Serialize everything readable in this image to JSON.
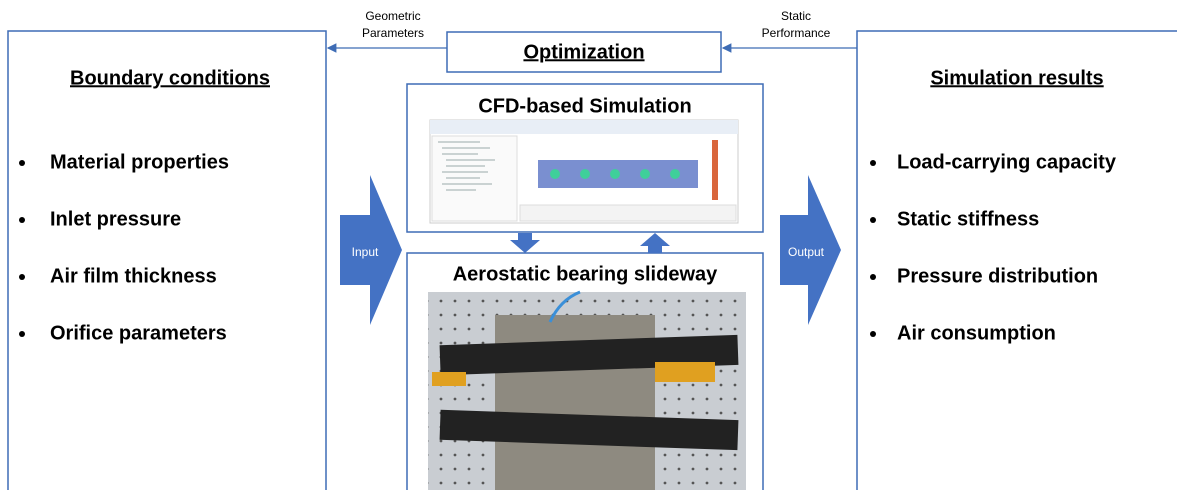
{
  "optimization": "Optimization",
  "edges": {
    "left": [
      "Geometric",
      "Parameters"
    ],
    "right": [
      "Static",
      "Performance"
    ]
  },
  "boundary": {
    "title": "Boundary conditions",
    "items": [
      "Material properties",
      "Inlet pressure",
      "Air film thickness",
      "Orifice parameters"
    ]
  },
  "results": {
    "title": "Simulation results",
    "items": [
      "Load-carrying capacity",
      "Static stiffness",
      "Pressure distribution",
      "Air consumption"
    ]
  },
  "cfd": {
    "title": "CFD-based Simulation"
  },
  "bearing": {
    "title": "Aerostatic bearing slideway"
  },
  "arrows": {
    "input": "Input",
    "output": "Output"
  }
}
